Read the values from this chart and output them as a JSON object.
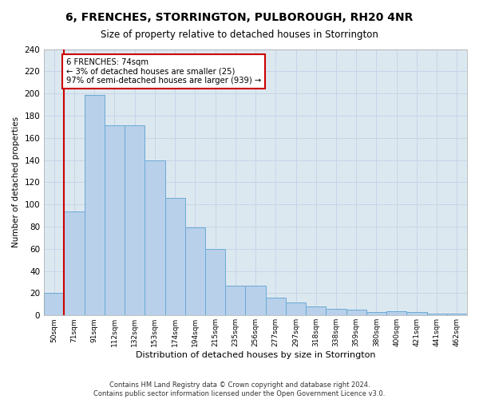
{
  "title": "6, FRENCHES, STORRINGTON, PULBOROUGH, RH20 4NR",
  "subtitle": "Size of property relative to detached houses in Storrington",
  "xlabel": "Distribution of detached houses by size in Storrington",
  "ylabel": "Number of detached properties",
  "categories": [
    "50sqm",
    "71sqm",
    "91sqm",
    "112sqm",
    "132sqm",
    "153sqm",
    "174sqm",
    "194sqm",
    "215sqm",
    "235sqm",
    "256sqm",
    "277sqm",
    "297sqm",
    "318sqm",
    "338sqm",
    "359sqm",
    "380sqm",
    "400sqm",
    "421sqm",
    "441sqm",
    "462sqm"
  ],
  "values": [
    20,
    94,
    199,
    171,
    171,
    140,
    106,
    79,
    60,
    27,
    27,
    16,
    12,
    8,
    6,
    5,
    3,
    4,
    3,
    2,
    2
  ],
  "bar_color": "#b8d0ea",
  "bar_edge_color": "#6aaad4",
  "highlight_color": "#cc0000",
  "annotation_text": "6 FRENCHES: 74sqm\n← 3% of detached houses are smaller (25)\n97% of semi-detached houses are larger (939) →",
  "annotation_box_color": "#ffffff",
  "annotation_box_edge": "#cc0000",
  "ylim": [
    0,
    240
  ],
  "yticks": [
    0,
    20,
    40,
    60,
    80,
    100,
    120,
    140,
    160,
    180,
    200,
    220,
    240
  ],
  "grid_color": "#c8d4e8",
  "background_color": "#dce8f0",
  "footer_line1": "Contains HM Land Registry data © Crown copyright and database right 2024.",
  "footer_line2": "Contains public sector information licensed under the Open Government Licence v3.0."
}
